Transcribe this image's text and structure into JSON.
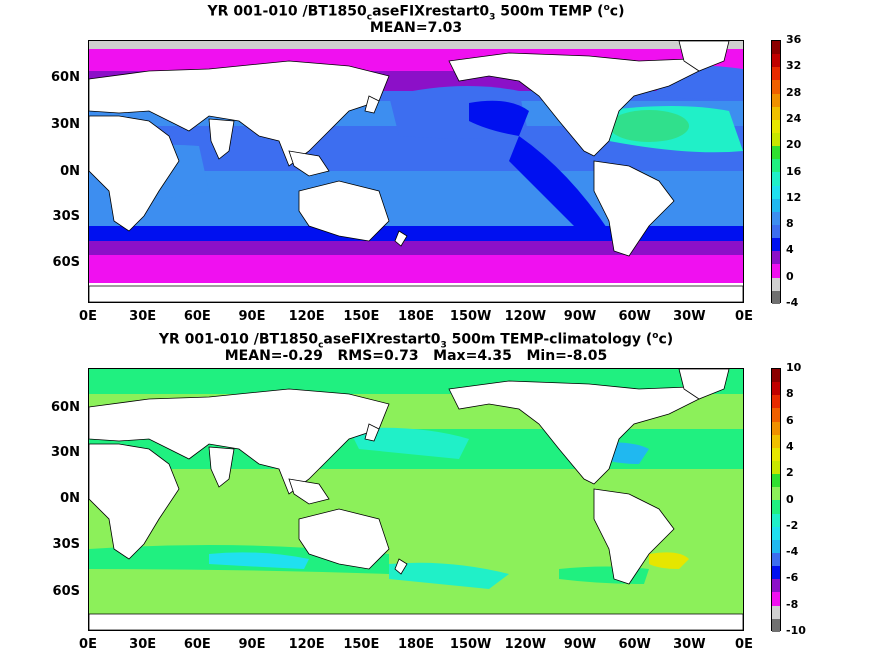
{
  "top": {
    "title_main": "YR 001-010 /BT1850",
    "title_sub1": "c",
    "title_mid": "aseFIXrestart0",
    "title_sub2": "3",
    "title_end": " 500m TEMP (",
    "title_sup": "o",
    "title_unit": "c)",
    "stats": "MEAN=7.03",
    "colorbar_labels": [
      "36",
      "32",
      "28",
      "24",
      "20",
      "16",
      "12",
      "8",
      "4",
      "0",
      "-4"
    ]
  },
  "bottom": {
    "title_main": "YR 001-010 /BT1850",
    "title_sub1": "c",
    "title_mid": "aseFIXrestart0",
    "title_sub2": "3",
    "title_end": " 500m TEMP-climatology (",
    "title_sup": "o",
    "title_unit": "c)",
    "stats": "MEAN=-0.29   RMS=0.73   Max=4.35   Min=-8.05",
    "colorbar_labels": [
      "10",
      "8",
      "6",
      "4",
      "2",
      "0",
      "-2",
      "-4",
      "-6",
      "-8",
      "-10"
    ]
  },
  "axes": {
    "lat_labels": [
      "60N",
      "30N",
      "0N",
      "30S",
      "60S"
    ],
    "lon_labels": [
      "0E",
      "30E",
      "60E",
      "90E",
      "120E",
      "150E",
      "180E",
      "150W",
      "120W",
      "90W",
      "60W",
      "30W",
      "0E"
    ]
  },
  "colors": {
    "top_scale": [
      "#8b0000",
      "#c00000",
      "#e82a00",
      "#f06000",
      "#f09000",
      "#f0c000",
      "#e6e600",
      "#c8e600",
      "#30e030",
      "#20f080",
      "#20f0c8",
      "#20e0f0",
      "#20b8f0",
      "#3d8ef0",
      "#3d6ef0",
      "#0010f0",
      "#8c10c8",
      "#f010f0",
      "#d0d0d0",
      "#707070"
    ],
    "bottom_scale": [
      "#8b0000",
      "#c00000",
      "#e82a00",
      "#f06000",
      "#f09000",
      "#f0c000",
      "#e6e600",
      "#c8e600",
      "#30e030",
      "#8cf05a",
      "#20f080",
      "#20f0c8",
      "#20e0f0",
      "#20b8f0",
      "#3d6ef0",
      "#0010f0",
      "#8c10c8",
      "#f010f0",
      "#d0d0d0",
      "#707070"
    ]
  }
}
